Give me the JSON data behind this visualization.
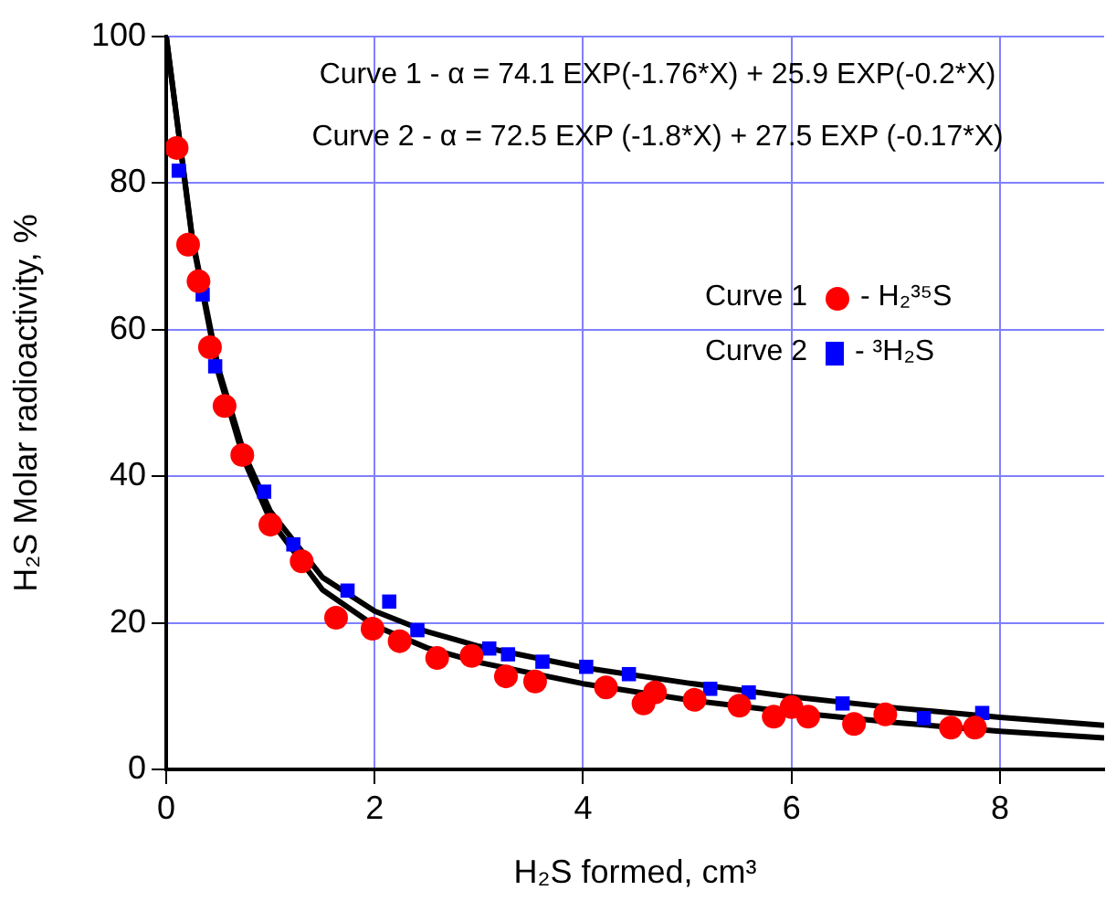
{
  "chart_data": {
    "type": "scatter",
    "xlabel": "H₂S formed, cm³",
    "ylabel": "H₂S Molar radioactivity, %",
    "annotations": [
      "Curve 1 - α = 74.1 EXP(-1.76*X) + 25.9 EXP(-0.2*X)",
      "Curve 2 - α = 72.5 EXP (-1.8*X) + 27.5 EXP (-0.17*X)",
      "- H₂³⁵S",
      "- ³H₂S"
    ],
    "xlim": [
      0,
      9
    ],
    "xticks": [
      0,
      2,
      4,
      6,
      8
    ],
    "ylim": [
      0,
      100
    ],
    "yticks": [
      0,
      20,
      40,
      60,
      80,
      100
    ],
    "grid": true,
    "legend": "top right",
    "series": [
      {
        "type": "line",
        "color": "#000000",
        "marker": "none",
        "x": [
          0,
          0.25,
          0.5,
          0.75,
          1,
          1.5,
          2,
          2.5,
          3,
          4,
          5,
          6,
          7,
          8,
          9
        ],
        "values": [
          100,
          72.3,
          54.1,
          42.1,
          34.0,
          24.5,
          19.6,
          16.6,
          14.6,
          11.7,
          9.5,
          7.8,
          6.4,
          5.2,
          4.3
        ]
      },
      {
        "type": "line",
        "color": "#000000",
        "marker": "none",
        "x": [
          0,
          0.25,
          0.5,
          0.75,
          1,
          1.5,
          2,
          2.5,
          3,
          4,
          5,
          6,
          7,
          8,
          9
        ],
        "values": [
          100,
          72.6,
          54.8,
          43.0,
          35.2,
          26.2,
          21.6,
          18.8,
          16.8,
          13.9,
          11.8,
          9.9,
          8.4,
          7.1,
          6.0
        ]
      },
      {
        "name": "Curve 1",
        "color": "#ff0000",
        "marker": "circle",
        "x": [
          0.1,
          0.21,
          0.31,
          0.42,
          0.56,
          0.73,
          1.0,
          1.3,
          1.63,
          1.98,
          2.24,
          2.6,
          2.93,
          3.26,
          3.54,
          4.22,
          4.58,
          4.69,
          5.07,
          5.5,
          5.83,
          6.0,
          6.16,
          6.6,
          6.9,
          7.53,
          7.76
        ],
        "values": [
          84.8,
          71.6,
          66.6,
          57.6,
          49.6,
          42.9,
          33.4,
          28.4,
          20.7,
          19.2,
          17.5,
          15.2,
          15.5,
          12.7,
          12.0,
          11.2,
          9.0,
          10.5,
          9.5,
          8.7,
          7.2,
          8.5,
          7.2,
          6.2,
          7.5,
          5.7,
          5.7
        ]
      },
      {
        "name": "Curve 2",
        "color": "#0000ff",
        "marker": "square",
        "x": [
          0.12,
          0.35,
          0.47,
          0.94,
          1.22,
          1.74,
          2.14,
          2.41,
          3.1,
          3.28,
          3.61,
          4.03,
          4.44,
          5.22,
          5.59,
          6.49,
          7.27,
          7.83
        ],
        "values": [
          81.7,
          64.8,
          55.0,
          37.9,
          30.7,
          24.4,
          22.9,
          19.0,
          16.5,
          15.7,
          14.7,
          14.0,
          13.0,
          11.0,
          10.5,
          9.0,
          7.0,
          7.7
        ]
      }
    ]
  }
}
